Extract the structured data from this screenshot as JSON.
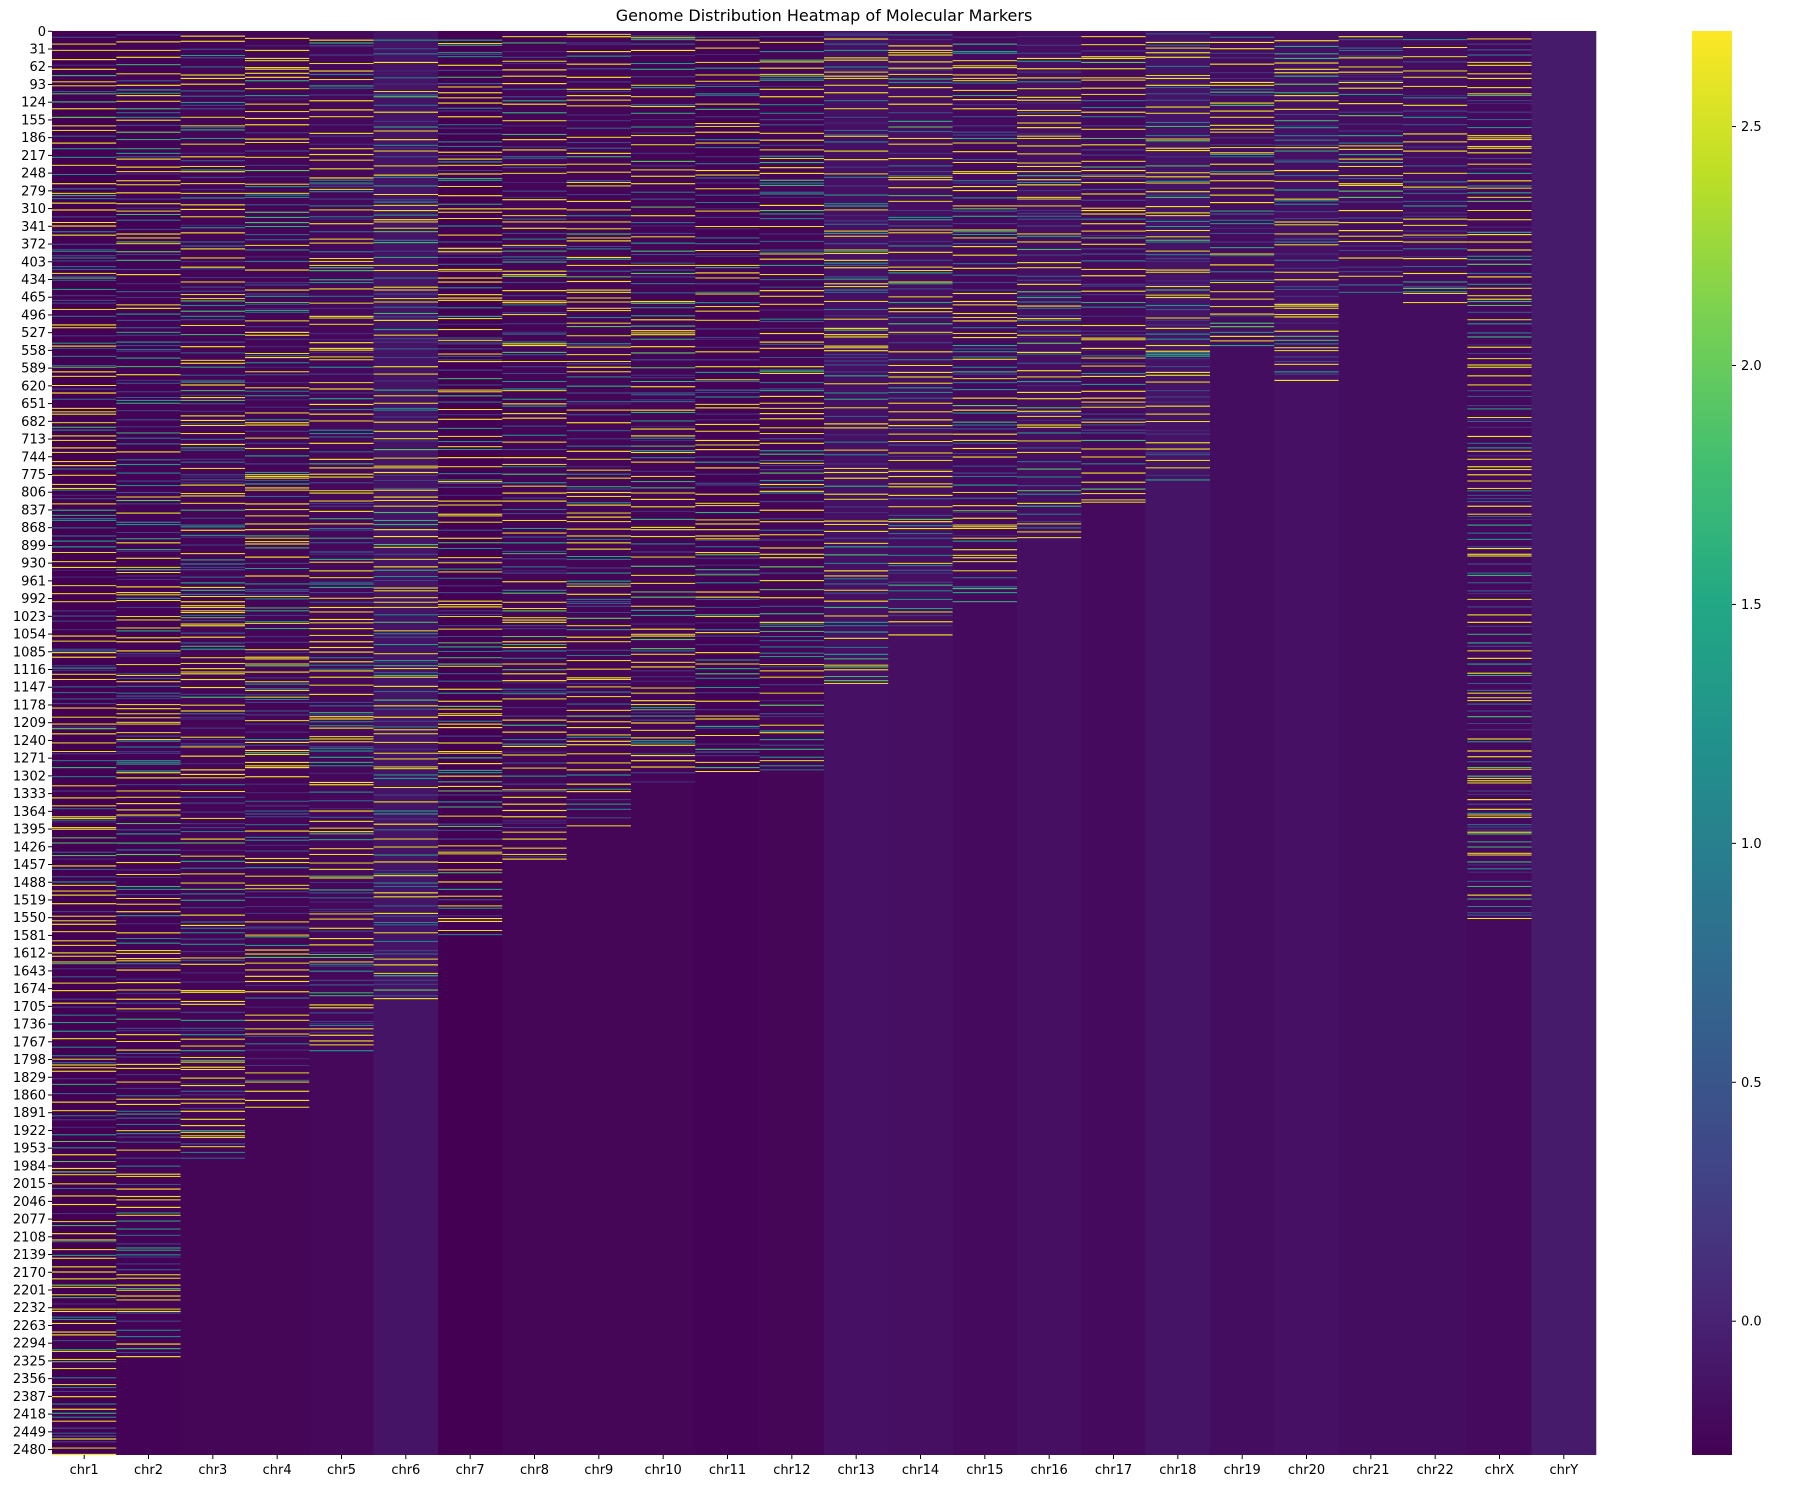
{
  "chart_data": {
    "type": "heatmap",
    "title": "Genome Distribution Heatmap of Molecular Markers",
    "xlabel": "",
    "ylabel": "",
    "columns": [
      "chr1",
      "chr2",
      "chr3",
      "chr4",
      "chr5",
      "chr6",
      "chr7",
      "chr8",
      "chr9",
      "chr10",
      "chr11",
      "chr12",
      "chr13",
      "chr14",
      "chr15",
      "chr16",
      "chr17",
      "chr18",
      "chr19",
      "chr20",
      "chr21",
      "chr22",
      "chrX",
      "chrY"
    ],
    "row_count": 2490,
    "y_ticks": [
      0,
      31,
      62,
      93,
      124,
      155,
      186,
      217,
      248,
      279,
      310,
      341,
      372,
      403,
      434,
      465,
      496,
      527,
      558,
      589,
      620,
      651,
      682,
      713,
      744,
      775,
      806,
      837,
      868,
      899,
      930,
      961,
      992,
      1023,
      1054,
      1085,
      1116,
      1147,
      1178,
      1209,
      1240,
      1271,
      1302,
      1333,
      1364,
      1395,
      1426,
      1457,
      1488,
      1519,
      1550,
      1581,
      1612,
      1643,
      1674,
      1705,
      1736,
      1767,
      1798,
      1829,
      1860,
      1891,
      1922,
      1953,
      1984,
      2015,
      2046,
      2077,
      2108,
      2139,
      2170,
      2201,
      2232,
      2263,
      2294,
      2325,
      2356,
      2387,
      2418,
      2449,
      2480
    ],
    "marker_rows_per_chromosome": [
      2490,
      2326,
      1978,
      1882,
      1794,
      1696,
      1582,
      1455,
      1390,
      1313,
      1301,
      1294,
      1143,
      1057,
      1000,
      897,
      825,
      792,
      553,
      611,
      467,
      487,
      1553,
      0
    ],
    "background_values": [
      -0.28,
      -0.26,
      -0.24,
      -0.24,
      -0.22,
      -0.12,
      -0.28,
      -0.24,
      -0.24,
      -0.24,
      -0.26,
      -0.24,
      -0.14,
      -0.16,
      -0.2,
      -0.16,
      -0.2,
      -0.12,
      -0.18,
      -0.14,
      -0.18,
      -0.18,
      -0.2,
      -0.06
    ],
    "colorbar": {
      "min": -0.28,
      "max": 2.7,
      "ticks": [
        0.0,
        0.5,
        1.0,
        1.5,
        2.0,
        2.5
      ],
      "tick_labels": [
        "0.0",
        "0.5",
        "1.0",
        "1.5",
        "2.0",
        "2.5"
      ],
      "colormap": "viridis"
    },
    "grid": false
  },
  "colors": {
    "viridis_low": "#440154",
    "viridis_mid": "#21918c",
    "viridis_high": "#fde725"
  }
}
